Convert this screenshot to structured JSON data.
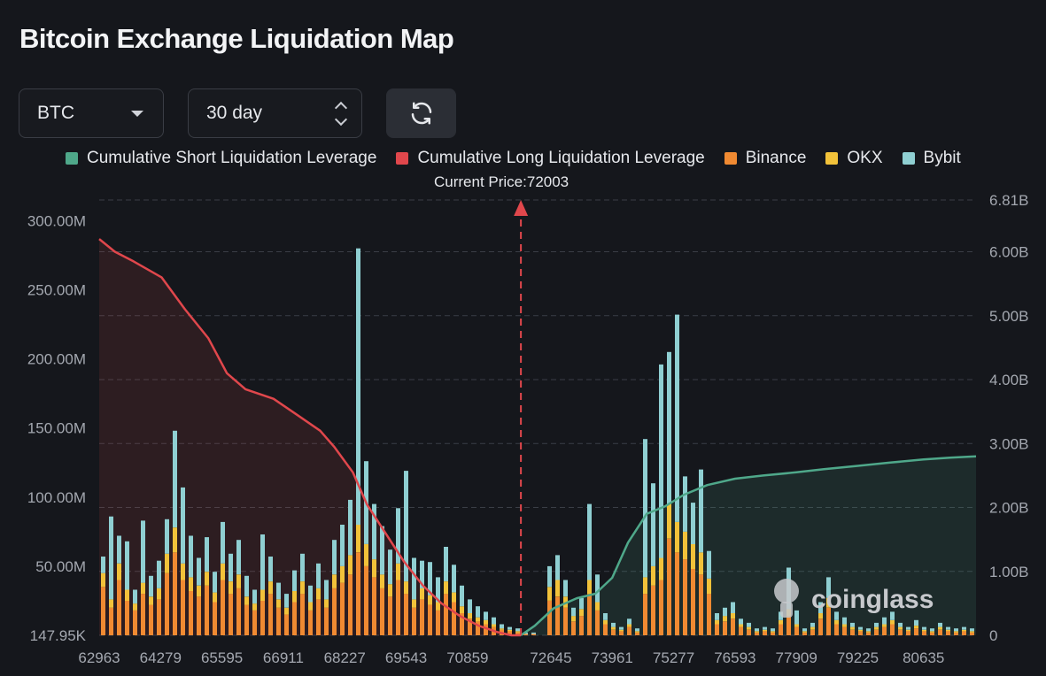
{
  "title": "Bitcoin Exchange Liquidation Map",
  "controls": {
    "symbol": "BTC",
    "period": "30 day"
  },
  "legend": [
    {
      "label": "Cumulative Short Liquidation Leverage",
      "color": "#4fa88a"
    },
    {
      "label": "Cumulative Long Liquidation Leverage",
      "color": "#e0474c"
    },
    {
      "label": "Binance",
      "color": "#f08a32"
    },
    {
      "label": "OKX",
      "color": "#f2c23a"
    },
    {
      "label": "Bybit",
      "color": "#8fcfd2"
    }
  ],
  "current_price_label": "Current Price:72003",
  "watermark": "coinglass",
  "chart_data": {
    "type": "bar",
    "title": "Bitcoin Exchange Liquidation Map",
    "current_price": 72003,
    "x_tick_labels": [
      "62963",
      "64279",
      "65595",
      "66911",
      "68227",
      "69543",
      "70859",
      "72645",
      "73961",
      "75277",
      "76593",
      "77909",
      "79225",
      "80635"
    ],
    "x_range": [
      62963,
      81760
    ],
    "left_axis": {
      "labels": [
        "300.00M",
        "250.00M",
        "200.00M",
        "150.00M",
        "100.00M",
        "50.00M",
        "147.95K"
      ],
      "ticks": [
        300,
        250,
        200,
        150,
        100,
        50,
        0
      ],
      "unit": "M",
      "ylim": [
        0,
        315
      ]
    },
    "right_axis": {
      "labels": [
        "6.81B",
        "6.00B",
        "5.00B",
        "4.00B",
        "3.00B",
        "2.00B",
        "1.00B",
        "0"
      ],
      "ticks": [
        6.81,
        6,
        5,
        4,
        3,
        2,
        1,
        0
      ],
      "unit": "B",
      "ylim": [
        0,
        6.81
      ]
    },
    "series": [
      {
        "name": "Cumulative Long Liquidation Leverage",
        "axis": "right",
        "color": "#e0474c",
        "x": [
          62963,
          63300,
          63700,
          64300,
          64800,
          65300,
          65700,
          66100,
          66700,
          67200,
          67700,
          68000,
          68400,
          68700,
          69100,
          69500,
          69900,
          70300,
          70700,
          71100,
          71500,
          71800,
          72003
        ],
        "y": [
          6.2,
          6.0,
          5.85,
          5.6,
          5.1,
          4.65,
          4.1,
          3.85,
          3.7,
          3.45,
          3.2,
          2.95,
          2.55,
          2.05,
          1.6,
          1.15,
          0.78,
          0.5,
          0.3,
          0.15,
          0.05,
          0.0,
          0.0
        ]
      },
      {
        "name": "Cumulative Short Liquidation Leverage",
        "axis": "right",
        "color": "#4fa88a",
        "x": [
          72003,
          72300,
          72700,
          73200,
          73600,
          73961,
          74300,
          74700,
          75100,
          75500,
          76000,
          76593,
          77200,
          77909,
          78500,
          79225,
          79900,
          80635,
          81200,
          81760
        ],
        "y": [
          0.0,
          0.15,
          0.42,
          0.58,
          0.65,
          0.9,
          1.45,
          1.9,
          2.02,
          2.2,
          2.35,
          2.45,
          2.5,
          2.55,
          2.6,
          2.65,
          2.7,
          2.75,
          2.78,
          2.8
        ]
      },
      {
        "name": "Binance",
        "axis": "left",
        "color": "#f08a32",
        "values": [
          35,
          20,
          40,
          25,
          18,
          30,
          22,
          26,
          45,
          60,
          40,
          32,
          28,
          36,
          24,
          40,
          30,
          34,
          22,
          18,
          25,
          30,
          20,
          15,
          24,
          30,
          18,
          26,
          20,
          34,
          38,
          44,
          60,
          50,
          42,
          34,
          28,
          40,
          30,
          20,
          26,
          22,
          18,
          30,
          24,
          16,
          12,
          10,
          8,
          6,
          4,
          3,
          2,
          1,
          1,
          0,
          25,
          28,
          20,
          10,
          14,
          30,
          18,
          8,
          4,
          3,
          6,
          2,
          30,
          36,
          40,
          70,
          60,
          55,
          48,
          44,
          30,
          8,
          10,
          12,
          6,
          4,
          2,
          3,
          2,
          8,
          14,
          6,
          2,
          4,
          12,
          20,
          8,
          6,
          4,
          3,
          2,
          4,
          6,
          8,
          4,
          3,
          5,
          3,
          2,
          4,
          3,
          2,
          3,
          2
        ]
      },
      {
        "name": "OKX",
        "axis": "left",
        "color": "#f2c23a",
        "values": [
          10,
          6,
          12,
          8,
          5,
          8,
          6,
          8,
          14,
          18,
          12,
          10,
          8,
          10,
          7,
          12,
          9,
          10,
          6,
          5,
          8,
          9,
          6,
          5,
          8,
          9,
          6,
          8,
          6,
          10,
          12,
          14,
          20,
          16,
          13,
          10,
          9,
          12,
          9,
          6,
          8,
          7,
          6,
          9,
          7,
          5,
          4,
          3,
          3,
          2,
          1,
          1,
          1,
          0,
          0,
          0,
          10,
          12,
          8,
          4,
          5,
          10,
          6,
          3,
          2,
          1,
          2,
          1,
          12,
          14,
          16,
          25,
          22,
          20,
          18,
          16,
          11,
          3,
          4,
          4,
          2,
          2,
          1,
          1,
          1,
          3,
          5,
          2,
          1,
          2,
          4,
          7,
          3,
          2,
          2,
          1,
          1,
          2,
          2,
          3,
          2,
          1,
          2,
          1,
          1,
          2,
          1,
          1,
          1,
          1
        ]
      },
      {
        "name": "Bybit",
        "axis": "left",
        "color": "#8fcfd2",
        "values": [
          12,
          60,
          20,
          35,
          10,
          45,
          15,
          20,
          25,
          70,
          55,
          30,
          20,
          25,
          15,
          30,
          20,
          25,
          15,
          10,
          40,
          18,
          12,
          10,
          15,
          20,
          12,
          18,
          14,
          25,
          30,
          40,
          200,
          60,
          40,
          35,
          25,
          40,
          80,
          30,
          20,
          24,
          18,
          25,
          20,
          15,
          10,
          8,
          6,
          5,
          3,
          2,
          2,
          1,
          1,
          0,
          15,
          18,
          12,
          6,
          8,
          55,
          20,
          5,
          3,
          2,
          4,
          2,
          100,
          60,
          140,
          110,
          150,
          40,
          30,
          60,
          20,
          5,
          6,
          8,
          4,
          3,
          2,
          2,
          2,
          6,
          30,
          10,
          2,
          3,
          8,
          15,
          6,
          5,
          3,
          2,
          2,
          3,
          5,
          6,
          3,
          2,
          4,
          2,
          2,
          3,
          2,
          2,
          2,
          2
        ]
      }
    ]
  }
}
